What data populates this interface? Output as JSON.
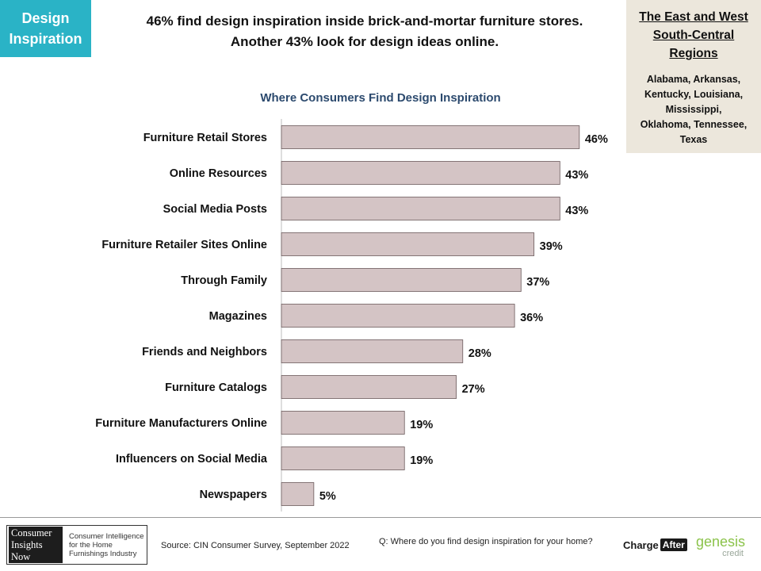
{
  "section_tag": {
    "line1": "Design",
    "line2": "Inspiration"
  },
  "headline": {
    "line1": "46% find design inspiration  inside brick-and-mortar  furniture stores.",
    "line2": "Another 43% look for design ideas online."
  },
  "region": {
    "title_lines": [
      "The East and West",
      "South-Central",
      "Regions"
    ],
    "states_lines": [
      "Alabama, Arkansas,",
      "Kentucky, Louisiana,",
      "Mississippi,",
      "Oklahoma, Tennessee,",
      "Texas"
    ]
  },
  "chart_data": {
    "type": "bar",
    "orientation": "horizontal",
    "title": "Where Consumers Find Design Inspiration",
    "categories": [
      "Furniture Retail Stores",
      "Online Resources",
      "Social Media Posts",
      "Furniture Retailer Sites Online",
      "Through Family",
      "Magazines",
      "Friends and Neighbors",
      "Furniture Catalogs",
      "Furniture Manufacturers Online",
      "Influencers on Social Media",
      "Newspapers"
    ],
    "values": [
      46,
      43,
      43,
      39,
      37,
      36,
      28,
      27,
      19,
      19,
      5
    ],
    "value_labels": [
      "46%",
      "43%",
      "43%",
      "39%",
      "37%",
      "36%",
      "28%",
      "27%",
      "19%",
      "19%",
      "5%"
    ],
    "unit": "%",
    "xlim": [
      0,
      50
    ],
    "grid": false,
    "legend": "none",
    "bar_color": "#d4c4c5",
    "bar_stroke": "#6b5a5c",
    "axis_color": "#bdbdbd"
  },
  "footer": {
    "logo_mark_lines": [
      "Consumer",
      "Insights",
      "Now"
    ],
    "logo_text_lines": [
      "Consumer Intelligence",
      "for the Home",
      "Furnishings Industry"
    ],
    "source": "Source: CIN Consumer Survey, September  2022",
    "question": "Q: Where do you find design inspiration for your home?",
    "chargeafter_word1": "Charge",
    "chargeafter_word2": "After",
    "genesis_word1": "genesis",
    "genesis_word2": "credit"
  },
  "colors": {
    "tag_bg": "#2ab3c6",
    "region_bg": "#ece7dc",
    "chart_title": "#2c4a6e",
    "genesis_green": "#8bc34a"
  }
}
